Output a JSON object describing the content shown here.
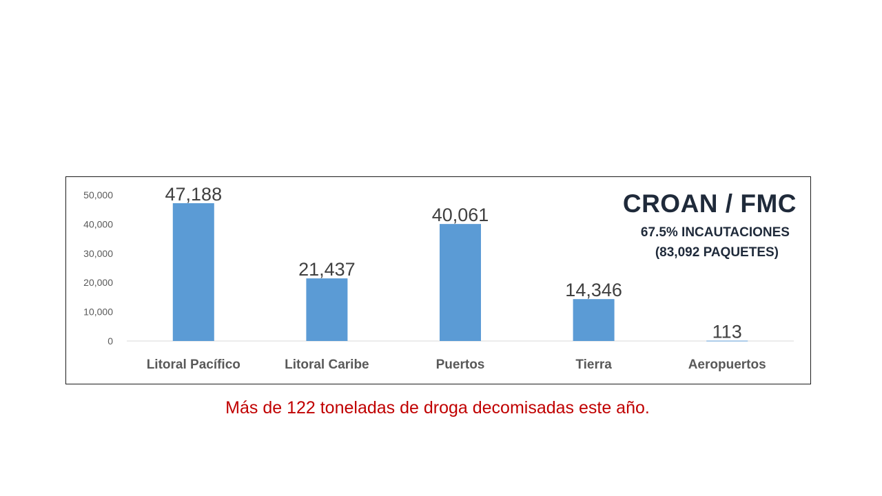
{
  "chart_data": {
    "type": "bar",
    "categories": [
      "Litoral Pacífico",
      "Litoral Caribe",
      "Puertos",
      "Tierra",
      "Aeropuertos"
    ],
    "values": [
      47188,
      21437,
      40061,
      14346,
      113
    ],
    "value_labels": [
      "47,188",
      "21,437",
      "40,061",
      "14,346",
      "113"
    ],
    "ylim": [
      0,
      50000
    ],
    "yticks": [
      0,
      10000,
      20000,
      30000,
      40000,
      50000
    ],
    "ytick_labels": [
      "0",
      "10,000",
      "20,000",
      "30,000",
      "40,000",
      "50,000"
    ],
    "bar_color": "#5b9bd5",
    "grid": false,
    "title": "",
    "xlabel": "",
    "ylabel": ""
  },
  "annotation": {
    "title": "CROAN / FMC",
    "line1": "67.5% INCAUTACIONES",
    "line2": "(83,092 PAQUETES)"
  },
  "caption": {
    "text": "Más de 122 toneladas de droga decomisadas este año.",
    "color": "#c00000"
  }
}
